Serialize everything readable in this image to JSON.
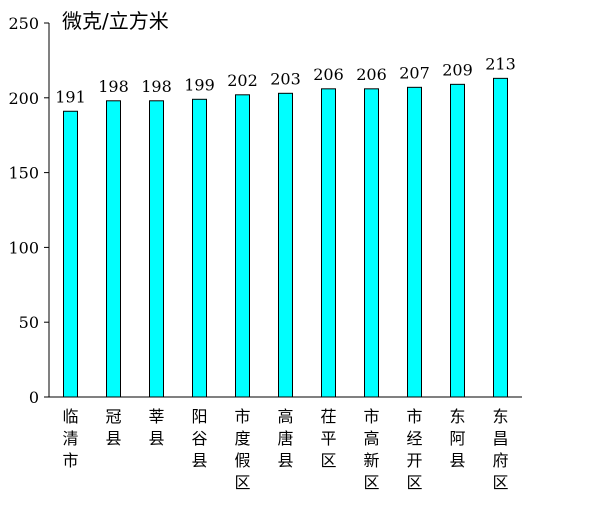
{
  "chart_data": {
    "type": "bar",
    "unit": "微克/立方米",
    "categories": [
      "临清市",
      "冠县",
      "莘县",
      "阳谷县",
      "市度假区",
      "高唐县",
      "茌平区",
      "市高新区",
      "市经开区",
      "东阿县",
      "东昌府区"
    ],
    "values": [
      191,
      198,
      198,
      199,
      202,
      203,
      206,
      206,
      207,
      209,
      213
    ],
    "data_labels": [
      "191",
      "198",
      "198",
      "199",
      "202",
      "203",
      "206",
      "206",
      "207",
      "209",
      "213"
    ],
    "yticks": [
      "0",
      "50",
      "100",
      "150",
      "200",
      "250"
    ],
    "ylim": [
      0,
      250
    ],
    "bar_color": "#00FFFF",
    "bar_stroke": "#000000",
    "grid": false,
    "legend": "none"
  }
}
